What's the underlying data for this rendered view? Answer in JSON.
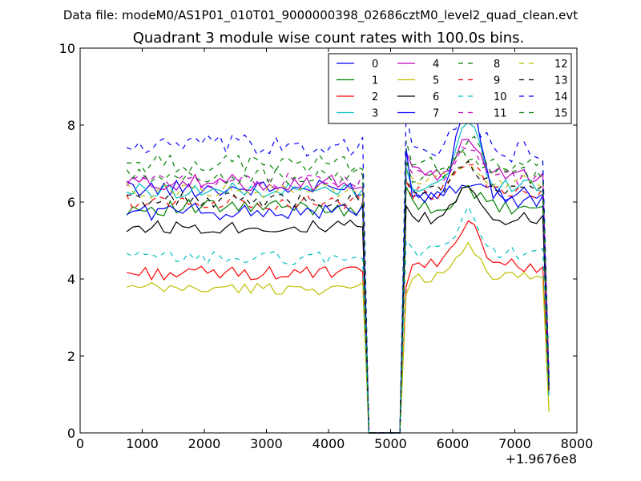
{
  "figure": {
    "suptitle": "Data file: modeM0/AS1P01_010T01_9000000398_02686cztM0_level2_quad_clean.evt"
  },
  "chart_data": {
    "type": "line",
    "title": "Quadrant 3 module wise count rates with 100.0s bins.",
    "xlabel": "",
    "ylabel": "",
    "x_offset_label": "+1.9676e8",
    "xlim": [
      0,
      8000
    ],
    "ylim": [
      0,
      10
    ],
    "xticks": [
      0,
      1000,
      2000,
      3000,
      4000,
      5000,
      6000,
      7000,
      8000
    ],
    "yticks": [
      0,
      2,
      4,
      6,
      8,
      10
    ],
    "xtick_labels": [
      "0",
      "1000",
      "2000",
      "3000",
      "4000",
      "5000",
      "6000",
      "7000",
      "8000"
    ],
    "ytick_labels": [
      "0",
      "2",
      "4",
      "6",
      "8",
      "10"
    ],
    "legend_position": "top-right",
    "legend_columns": 4,
    "segments": [
      {
        "x_start": 750,
        "x_end": 4550,
        "step": 100
      },
      {
        "x_start": 5250,
        "x_end": 7550,
        "step": 100
      }
    ],
    "gap": {
      "x_drop_end": 4650,
      "x_rise_start": 5150,
      "value": 0
    },
    "series": [
      {
        "name": "0",
        "color": "#0000ff",
        "dash": "solid",
        "base1": 6.35,
        "base2": 6.25,
        "noise": 0.22,
        "peak": 0.35,
        "end": 1.4,
        "first2": 6.9
      },
      {
        "name": "1",
        "color": "#008000",
        "dash": "solid",
        "base1": 5.85,
        "base2": 5.85,
        "noise": 0.22,
        "peak": 0.4,
        "end": 1.3,
        "first2": 6.4
      },
      {
        "name": "2",
        "color": "#ff0000",
        "dash": "solid",
        "base1": 4.15,
        "base2": 4.35,
        "noise": 0.18,
        "peak": 1.2,
        "end": 1.0,
        "first2": 3.8
      },
      {
        "name": "3",
        "color": "#00bfbf",
        "dash": "solid",
        "base1": 6.3,
        "base2": 6.45,
        "noise": 0.2,
        "peak": 1.6,
        "end": 1.3,
        "first2": 6.9
      },
      {
        "name": "4",
        "color": "#bf00bf",
        "dash": "solid",
        "base1": 6.5,
        "base2": 6.7,
        "noise": 0.22,
        "peak": 0.9,
        "end": 1.5,
        "first2": 7.3
      },
      {
        "name": "5",
        "color": "#bfbf00",
        "dash": "solid",
        "base1": 3.75,
        "base2": 4.05,
        "noise": 0.16,
        "peak": 0.8,
        "end": 0.55,
        "first2": 3.6
      },
      {
        "name": "6",
        "color": "#000000",
        "dash": "solid",
        "base1": 5.35,
        "base2": 5.55,
        "noise": 0.18,
        "peak": 0.9,
        "end": 1.1,
        "first2": 5.9
      },
      {
        "name": "7",
        "color": "#0000ff",
        "dash": "solid",
        "base1": 5.75,
        "base2": 6.05,
        "noise": 0.22,
        "peak": 2.6,
        "end": 1.2,
        "first2": 7.4
      },
      {
        "name": "8",
        "color": "#008000",
        "dash": "dashed",
        "base1": 7.0,
        "base2": 6.95,
        "noise": 0.25,
        "peak": 0.6,
        "end": 1.4,
        "first2": 7.6
      },
      {
        "name": "9",
        "color": "#ff0000",
        "dash": "dashed",
        "base1": 6.0,
        "base2": 6.2,
        "noise": 0.2,
        "peak": 0.9,
        "end": 1.2,
        "first2": 6.6
      },
      {
        "name": "10",
        "color": "#00bfbf",
        "dash": "dashed",
        "base1": 4.55,
        "base2": 4.7,
        "noise": 0.18,
        "peak": 1.0,
        "end": 0.9,
        "first2": 5.0
      },
      {
        "name": "11",
        "color": "#bf00bf",
        "dash": "dashed",
        "base1": 6.55,
        "base2": 6.65,
        "noise": 0.2,
        "peak": 0.7,
        "end": 1.4,
        "first2": 7.0
      },
      {
        "name": "12",
        "color": "#bfbf00",
        "dash": "dashed",
        "base1": 6.3,
        "base2": 6.5,
        "noise": 0.2,
        "peak": 0.6,
        "end": 1.3,
        "first2": 6.8
      },
      {
        "name": "13",
        "color": "#000000",
        "dash": "dashed",
        "base1": 6.05,
        "base2": 6.3,
        "noise": 0.2,
        "peak": 0.7,
        "end": 1.2,
        "first2": 6.6
      },
      {
        "name": "14",
        "color": "#0000ff",
        "dash": "dashed",
        "base1": 7.45,
        "base2": 7.3,
        "noise": 0.3,
        "peak": 1.0,
        "end": 1.5,
        "first2": 8.3
      },
      {
        "name": "15",
        "color": "#008000",
        "dash": "dashed",
        "base1": 6.65,
        "base2": 6.7,
        "noise": 0.22,
        "peak": 0.6,
        "end": 1.4,
        "first2": 7.1
      }
    ]
  }
}
